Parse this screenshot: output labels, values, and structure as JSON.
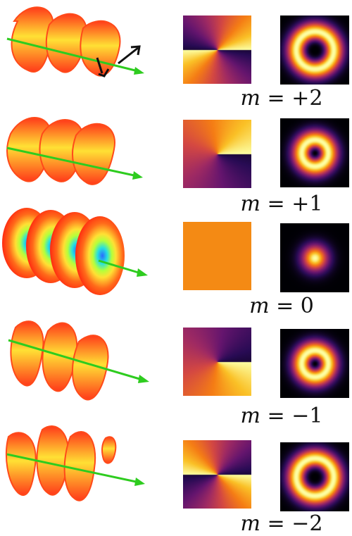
{
  "modes": [
    {
      "m": 2,
      "label_var": "m",
      "label_eq": "=",
      "label_val": "+2",
      "helix_color_a": "#ff3a1a",
      "helix_color_b": "#ffe034"
    },
    {
      "m": 1,
      "label_var": "m",
      "label_eq": "=",
      "label_val": "+1",
      "helix_color_a": "#ff3a1a",
      "helix_color_b": "#ffe034"
    },
    {
      "m": 0,
      "label_var": "m",
      "label_eq": "=",
      "label_val": "0",
      "helix_color_a": "#ff2a10",
      "helix_color_b": "#2a6bff"
    },
    {
      "m": -1,
      "label_var": "m",
      "label_eq": "=",
      "label_val": "−1",
      "helix_color_a": "#ff3a1a",
      "helix_color_b": "#ffe034"
    },
    {
      "m": -2,
      "label_var": "m",
      "label_eq": "=",
      "label_val": "−2",
      "helix_color_a": "#ff3a1a",
      "helix_color_b": "#ffe034"
    }
  ],
  "colors": {
    "beam_axis": "#2ecc1f",
    "phase_orange": "#f48a14",
    "background": "#ffffff"
  },
  "icons": {
    "polarization_arrows": "arrow-icon"
  }
}
